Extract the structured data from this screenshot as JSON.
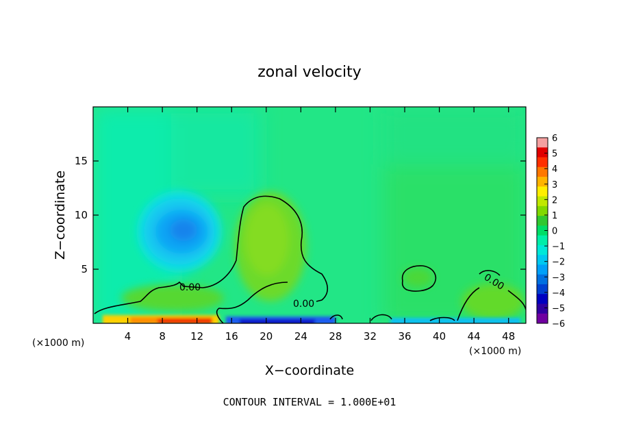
{
  "chart_data": {
    "type": "heatmap",
    "title": "zonal velocity",
    "xlabel": "X−coordinate",
    "ylabel": "Z−coordinate",
    "x_unit": "(×1000 m)",
    "y_unit": "(×1000 m)",
    "xlim": [
      0,
      50
    ],
    "ylim": [
      0,
      20
    ],
    "x_ticks": [
      4,
      8,
      12,
      16,
      20,
      24,
      28,
      32,
      36,
      40,
      44,
      48
    ],
    "y_ticks": [
      5,
      10,
      15
    ],
    "colorbar": {
      "min": -6,
      "max": 6,
      "tick_labels": [
        "6",
        "5",
        "4",
        "3",
        "2",
        "1",
        "0",
        "−1",
        "−2",
        "−3",
        "−4",
        "−5",
        "−6"
      ],
      "colors": [
        "#f4a0a0",
        "#e00000",
        "#ff3000",
        "#ff7800",
        "#ffb400",
        "#ffee00",
        "#c0e800",
        "#80d800",
        "#30c830",
        "#00dd66",
        "#00eea8",
        "#00e8d8",
        "#00c8f0",
        "#00a0f8",
        "#0070e0",
        "#0040d0",
        "#0000c0",
        "#3000a0",
        "#7000a0"
      ]
    },
    "contours": [
      {
        "level": 0.0,
        "label": "0.00"
      }
    ],
    "footer": "CONTOUR INTERVAL = 1.000E+01"
  }
}
